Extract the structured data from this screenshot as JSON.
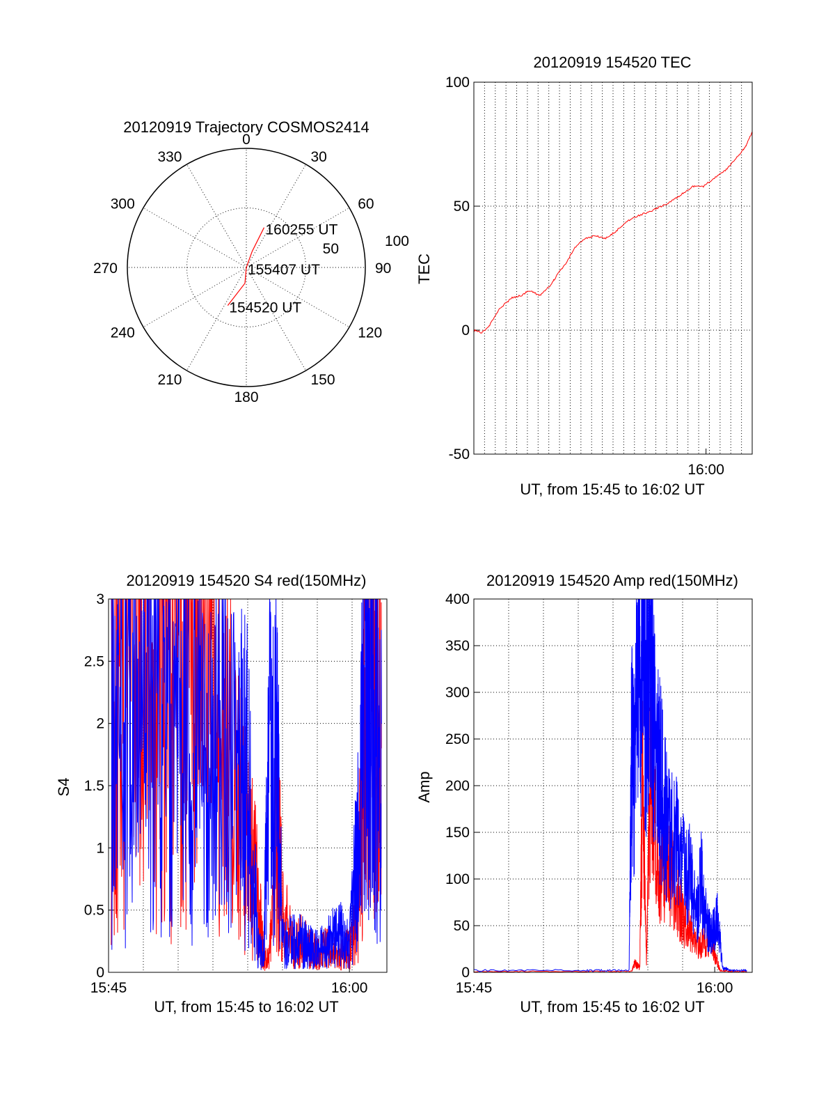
{
  "colors": {
    "red": "#ff0000",
    "blue": "#0000ff",
    "axis": "#000000",
    "background": "#ffffff"
  },
  "chart_data": [
    {
      "id": "trajectory",
      "type": "polar",
      "title": "20120919 Trajectory COSMOS2414",
      "azimuth_labels": [
        "0",
        "30",
        "60",
        "90",
        "120",
        "150",
        "180",
        "210",
        "240",
        "270",
        "300",
        "330"
      ],
      "azimuth_values": [
        0,
        30,
        60,
        90,
        120,
        150,
        180,
        210,
        240,
        270,
        300,
        330
      ],
      "radial_labels": [
        "50",
        "100"
      ],
      "radial_max": 100,
      "grid": true,
      "series": [
        {
          "color": "red",
          "points_az_el": [
            [
              206,
              58
            ],
            [
              185,
              78
            ],
            [
              0,
              90
            ],
            [
              20,
              77
            ],
            [
              24,
              57
            ]
          ]
        }
      ],
      "annotations": [
        {
          "text": "160255 UT",
          "az": 24,
          "el": 57
        },
        {
          "text": "155407 UT",
          "az": 0,
          "el": 90
        },
        {
          "text": "154520 UT",
          "az": 206,
          "el": 58
        }
      ]
    },
    {
      "id": "tec",
      "type": "line",
      "title": "20120919 154520 TEC",
      "ylabel": "TEC",
      "xlabel": "UT, from 15:45 to 16:02 UT",
      "xlim": [
        "15:45:20",
        "16:02:55"
      ],
      "ylim": [
        -50,
        100
      ],
      "yticks": [
        "-50",
        "0",
        "50",
        "100"
      ],
      "xticks": [
        "16:00"
      ],
      "grid": true,
      "series": [
        {
          "color": "red",
          "x": [
            "15:45:20",
            "15:45:50",
            "15:46:20",
            "15:47:00",
            "15:47:45",
            "15:48:20",
            "15:48:50",
            "15:49:30",
            "15:50:10",
            "15:50:40",
            "15:51:10",
            "15:51:40",
            "15:52:20",
            "15:53:00",
            "15:53:40",
            "15:54:20",
            "15:55:00",
            "15:55:40",
            "15:56:30",
            "15:57:10",
            "15:57:50",
            "15:58:30",
            "15:59:10",
            "15:59:50",
            "16:00:40",
            "16:01:20",
            "16:02:00",
            "16:02:30",
            "16:02:55"
          ],
          "y": [
            0,
            -1,
            2,
            9,
            13,
            14,
            16,
            14,
            18,
            23,
            27,
            33,
            37,
            38,
            37,
            40,
            44,
            46,
            48,
            50,
            52,
            55,
            58,
            58,
            62,
            65,
            70,
            74,
            80
          ]
        }
      ]
    },
    {
      "id": "s4",
      "type": "line",
      "title": "20120919 154520 S4 red(150MHz)",
      "ylabel": "S4",
      "xlabel": "UT, from 15:45 to 16:02 UT",
      "xlim": [
        "15:45:00",
        "16:02:20"
      ],
      "ylim": [
        0,
        3
      ],
      "yticks": [
        "0",
        "0.5",
        "1",
        "1.5",
        "2",
        "2.5",
        "3"
      ],
      "xticks": [
        "15:45",
        "16:00"
      ],
      "grid": true,
      "series": [
        {
          "color": "red",
          "x": [
            "15:45:10",
            "15:46:00",
            "15:47:00",
            "15:48:00",
            "15:49:00",
            "15:50:00",
            "15:51:00",
            "15:52:00",
            "15:53:00",
            "15:53:40",
            "15:54:20",
            "15:54:40",
            "15:55:00",
            "15:55:30",
            "15:55:50",
            "15:56:30",
            "15:57:00",
            "15:57:30",
            "15:58:00",
            "15:58:30",
            "15:59:00",
            "15:59:30",
            "16:00:00",
            "16:00:30",
            "16:01:00",
            "16:01:30",
            "16:02:00"
          ],
          "y": [
            2.2,
            2.6,
            2.4,
            2.5,
            2.2,
            2.3,
            2.0,
            1.9,
            1.5,
            1.0,
            0.6,
            0.12,
            0.1,
            1.2,
            0.5,
            0.2,
            0.25,
            0.2,
            0.15,
            0.2,
            0.15,
            0.15,
            0.2,
            0.5,
            2.0,
            2.5,
            1.8
          ]
        },
        {
          "color": "blue",
          "x": [
            "15:45:10",
            "15:46:00",
            "15:47:00",
            "15:48:00",
            "15:49:00",
            "15:50:00",
            "15:51:00",
            "15:52:00",
            "15:53:00",
            "15:53:40",
            "15:54:20",
            "15:54:40",
            "15:55:00",
            "15:55:30",
            "15:55:50",
            "15:56:30",
            "15:57:00",
            "15:57:30",
            "15:58:00",
            "15:58:30",
            "15:59:00",
            "15:59:30",
            "16:00:00",
            "16:00:30",
            "16:01:00",
            "16:01:30",
            "16:02:00"
          ],
          "y": [
            1.8,
            1.9,
            1.8,
            2.0,
            1.7,
            1.8,
            1.6,
            1.8,
            1.6,
            1.5,
            0.2,
            0.15,
            1.8,
            1.6,
            0.25,
            0.25,
            0.25,
            0.2,
            0.2,
            0.2,
            0.3,
            0.3,
            0.2,
            1.0,
            2.3,
            2.5,
            2.0
          ]
        }
      ]
    },
    {
      "id": "amp",
      "type": "line",
      "title": "20120919 154520 Amp red(150MHz)",
      "ylabel": "Amp",
      "xlabel": "UT, from 15:45 to 16:02 UT",
      "xlim": [
        "15:45:00",
        "16:02:20"
      ],
      "ylim": [
        0,
        400
      ],
      "yticks": [
        "0",
        "50",
        "100",
        "150",
        "200",
        "250",
        "300",
        "350",
        "400"
      ],
      "xticks": [
        "15:45",
        "16:00"
      ],
      "grid": true,
      "series": [
        {
          "color": "red",
          "x": [
            "15:45:00",
            "15:52:00",
            "15:54:50",
            "15:55:00",
            "15:55:20",
            "15:55:30",
            "15:55:45",
            "15:56:00",
            "15:56:30",
            "15:57:00",
            "15:57:30",
            "15:58:00",
            "15:58:30",
            "15:59:00",
            "15:59:30",
            "16:00:00",
            "16:00:20",
            "16:01:00",
            "16:02:00"
          ],
          "y": [
            1,
            1,
            1,
            10,
            5,
            200,
            8,
            220,
            100,
            120,
            90,
            60,
            40,
            30,
            35,
            20,
            2,
            1,
            1
          ]
        },
        {
          "color": "blue",
          "x": [
            "15:45:00",
            "15:52:00",
            "15:54:40",
            "15:54:50",
            "15:55:00",
            "15:55:20",
            "15:55:40",
            "15:56:00",
            "15:56:20",
            "15:56:40",
            "15:57:00",
            "15:57:30",
            "15:58:00",
            "15:58:30",
            "15:58:50",
            "15:59:10",
            "15:59:30",
            "15:59:50",
            "16:00:10",
            "16:00:30",
            "16:01:00",
            "16:02:00"
          ],
          "y": [
            2,
            2,
            2,
            250,
            200,
            380,
            280,
            350,
            220,
            200,
            160,
            140,
            120,
            100,
            60,
            100,
            50,
            40,
            60,
            5,
            2,
            2
          ]
        }
      ]
    }
  ]
}
